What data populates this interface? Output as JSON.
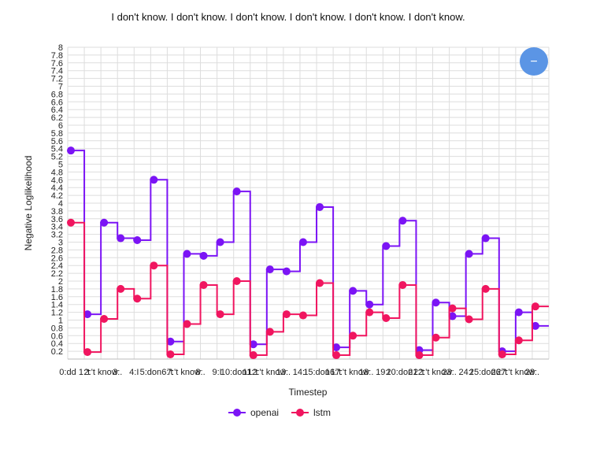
{
  "chart_data": {
    "type": "line",
    "line_shape": "step",
    "title": "I don't know. I don't know. I don't know. I don't know. I don't know. I don't know.",
    "xlabel": "Timestep",
    "ylabel": "Negative Loglikelihood",
    "ylim": [
      0,
      8
    ],
    "yticks": [
      "0.2",
      "0.4",
      "0.6",
      "0.8",
      "1",
      "1.2",
      "1.4",
      "1.6",
      "1.8",
      "2",
      "2.2",
      "2.4",
      "2.6",
      "2.8",
      "3",
      "3.2",
      "3.4",
      "3.6",
      "3.8",
      "4",
      "4.2",
      "4.4",
      "4.6",
      "4.8",
      "5",
      "5.2",
      "5.4",
      "5.6",
      "5.8",
      "6",
      "6.2",
      "6.4",
      "6.6",
      "6.8",
      "7",
      "7.2",
      "7.4",
      "7.6",
      "7.8",
      "8"
    ],
    "x_tick_labels": [
      "0:dd",
      "1:'t",
      "2:'t know",
      "3:.",
      "4:I",
      "5:don",
      "6:'t",
      "7:'t know",
      "8:.",
      "9:I",
      "10:don",
      "11:'t",
      "12:'t know",
      "13:.",
      "14:I",
      "15:don",
      "16:'t",
      "17:'t know",
      "18:.",
      "19:I",
      "20:don",
      "21:'t",
      "22:'t know",
      "23:.",
      "24:I",
      "25:don",
      "26:'t",
      "27:'t know",
      "28:."
    ],
    "grid": true,
    "legend_position": "bottom",
    "series": [
      {
        "name": "openai",
        "color": "#7b14f5",
        "values": [
          5.35,
          1.15,
          3.5,
          3.1,
          3.05,
          4.6,
          0.45,
          2.7,
          2.65,
          3.0,
          4.3,
          0.38,
          2.3,
          2.25,
          3.0,
          3.9,
          0.3,
          1.75,
          1.4,
          2.9,
          3.55,
          0.23,
          1.45,
          1.1,
          2.7,
          3.1,
          0.2,
          1.2,
          0.85
        ]
      },
      {
        "name": "lstm",
        "color": "#f0155f",
        "values": [
          3.5,
          0.18,
          1.03,
          1.8,
          1.55,
          2.4,
          0.12,
          0.9,
          1.9,
          1.15,
          2.0,
          0.1,
          0.7,
          1.15,
          1.12,
          1.95,
          0.1,
          0.6,
          1.2,
          1.05,
          1.9,
          0.1,
          0.55,
          1.3,
          1.02,
          1.8,
          0.12,
          0.48,
          1.35
        ]
      }
    ]
  },
  "ui": {
    "zoom_button_label": "−",
    "zoom_button_color": "#5b95e5"
  }
}
